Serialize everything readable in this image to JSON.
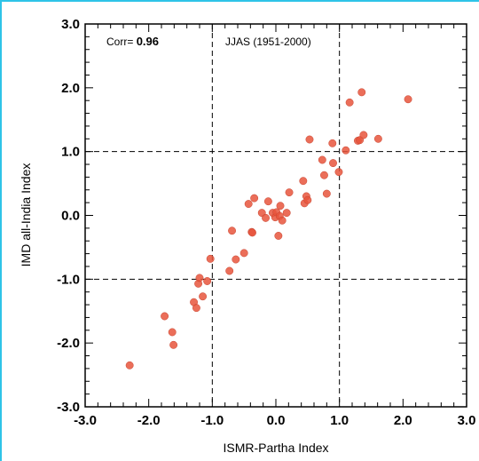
{
  "chart_data": {
    "type": "scatter",
    "title": "JJAS (1951-2000)",
    "xlabel": "ISMR-Partha Index",
    "ylabel": "IMD all-India Index",
    "xlim": [
      -3.0,
      3.0
    ],
    "ylim": [
      -3.0,
      3.0
    ],
    "xticks": [
      "-3.0",
      "-2.0",
      "-1.0",
      "0.0",
      "1.0",
      "2.0",
      "3.0"
    ],
    "yticks": [
      "-3.0",
      "-2.0",
      "-1.0",
      "0.0",
      "1.0",
      "2.0",
      "3.0"
    ],
    "corr_label": "Corr=",
    "corr_value": "0.96",
    "reference_lines": {
      "x": [
        -1.0,
        1.0
      ],
      "y": [
        -1.0,
        1.0
      ]
    },
    "grid": false,
    "marker_color": "#e8553c",
    "points": [
      {
        "x": -2.3,
        "y": -2.35
      },
      {
        "x": -1.75,
        "y": -1.58
      },
      {
        "x": -1.63,
        "y": -1.83
      },
      {
        "x": -1.61,
        "y": -2.03
      },
      {
        "x": -1.29,
        "y": -1.36
      },
      {
        "x": -1.25,
        "y": -1.45
      },
      {
        "x": -1.22,
        "y": -1.07
      },
      {
        "x": -1.2,
        "y": -0.98
      },
      {
        "x": -1.15,
        "y": -1.27
      },
      {
        "x": -1.08,
        "y": -1.03
      },
      {
        "x": -1.03,
        "y": -0.68
      },
      {
        "x": -0.73,
        "y": -0.87
      },
      {
        "x": -0.69,
        "y": -0.24
      },
      {
        "x": -0.63,
        "y": -0.69
      },
      {
        "x": -0.5,
        "y": -0.59
      },
      {
        "x": -0.43,
        "y": 0.18
      },
      {
        "x": -0.38,
        "y": -0.26
      },
      {
        "x": -0.37,
        "y": -0.27
      },
      {
        "x": -0.34,
        "y": 0.27
      },
      {
        "x": -0.22,
        "y": 0.04
      },
      {
        "x": -0.16,
        "y": -0.04
      },
      {
        "x": -0.12,
        "y": 0.22
      },
      {
        "x": -0.05,
        "y": 0.04
      },
      {
        "x": -0.01,
        "y": -0.03
      },
      {
        "x": 0.01,
        "y": 0.05
      },
      {
        "x": 0.04,
        "y": -0.32
      },
      {
        "x": 0.06,
        "y": -0.01
      },
      {
        "x": 0.07,
        "y": 0.15
      },
      {
        "x": 0.1,
        "y": -0.08
      },
      {
        "x": 0.17,
        "y": 0.04
      },
      {
        "x": 0.21,
        "y": 0.36
      },
      {
        "x": 0.43,
        "y": 0.54
      },
      {
        "x": 0.45,
        "y": 0.19
      },
      {
        "x": 0.48,
        "y": 0.3
      },
      {
        "x": 0.5,
        "y": 0.24
      },
      {
        "x": 0.53,
        "y": 1.19
      },
      {
        "x": 0.73,
        "y": 0.87
      },
      {
        "x": 0.76,
        "y": 0.63
      },
      {
        "x": 0.8,
        "y": 0.34
      },
      {
        "x": 0.89,
        "y": 1.13
      },
      {
        "x": 0.9,
        "y": 0.82
      },
      {
        "x": 0.99,
        "y": 0.68
      },
      {
        "x": 1.1,
        "y": 1.02
      },
      {
        "x": 1.16,
        "y": 1.77
      },
      {
        "x": 1.29,
        "y": 1.17
      },
      {
        "x": 1.32,
        "y": 1.18
      },
      {
        "x": 1.35,
        "y": 1.93
      },
      {
        "x": 1.38,
        "y": 1.26
      },
      {
        "x": 1.61,
        "y": 1.2
      },
      {
        "x": 2.08,
        "y": 1.82
      }
    ]
  }
}
